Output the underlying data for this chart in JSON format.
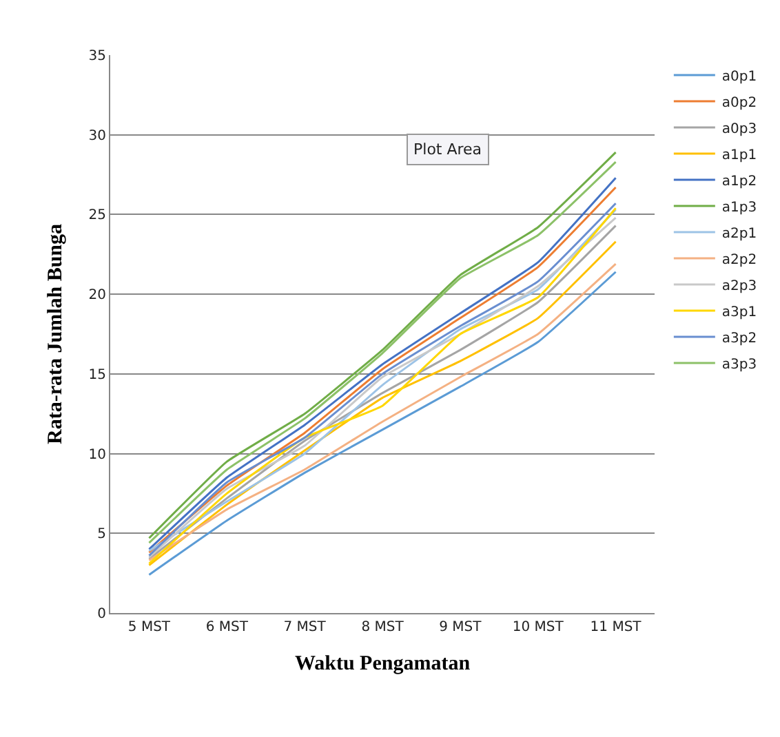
{
  "chart_data": {
    "type": "line",
    "xlabel": "Waktu Pengamatan",
    "ylabel": "Rata-rata Jumlah Bunga",
    "categories": [
      "5 MST",
      "6 MST",
      "7 MST",
      "8 MST",
      "9 MST",
      "10 MST",
      "11 MST"
    ],
    "series": [
      {
        "name": "a0p1",
        "color": "#5b9bd5",
        "values": [
          2.4,
          5.8,
          8.8,
          11.5,
          14.2,
          17.0,
          21.4
        ]
      },
      {
        "name": "a0p2",
        "color": "#ed7d31",
        "values": [
          3.8,
          8.0,
          11.3,
          15.3,
          18.5,
          21.7,
          26.7
        ]
      },
      {
        "name": "a0p3",
        "color": "#a5a5a5",
        "values": [
          3.4,
          7.2,
          10.8,
          13.8,
          16.5,
          19.5,
          24.3
        ]
      },
      {
        "name": "a1p1",
        "color": "#ffc000",
        "values": [
          3.0,
          6.8,
          10.2,
          13.5,
          15.8,
          18.5,
          23.3
        ]
      },
      {
        "name": "a1p2",
        "color": "#4472c4",
        "values": [
          4.0,
          8.5,
          11.8,
          15.6,
          18.8,
          22.0,
          27.3
        ]
      },
      {
        "name": "a1p3",
        "color": "#70ad47",
        "values": [
          4.7,
          9.5,
          12.5,
          16.5,
          21.2,
          24.2,
          28.9
        ]
      },
      {
        "name": "a2p1",
        "color": "#9dc3e6",
        "values": [
          3.9,
          7.0,
          10.0,
          14.3,
          17.8,
          20.3,
          25.3
        ]
      },
      {
        "name": "a2p2",
        "color": "#f4b183",
        "values": [
          3.3,
          6.5,
          9.0,
          12.0,
          14.8,
          17.5,
          21.9
        ]
      },
      {
        "name": "a2p3",
        "color": "#c9c9c9",
        "values": [
          3.5,
          7.8,
          10.5,
          14.8,
          17.5,
          20.5,
          24.8
        ]
      },
      {
        "name": "a3p1",
        "color": "#ffd700",
        "values": [
          3.1,
          7.5,
          11.0,
          13.0,
          17.5,
          19.8,
          25.4
        ]
      },
      {
        "name": "a3p2",
        "color": "#698ed0",
        "values": [
          3.6,
          8.2,
          11.0,
          15.0,
          18.0,
          20.8,
          25.7
        ]
      },
      {
        "name": "a3p3",
        "color": "#8cc168",
        "values": [
          4.4,
          9.0,
          12.2,
          16.3,
          21.0,
          23.7,
          28.3
        ]
      }
    ],
    "ylim": [
      0,
      35
    ],
    "yticks": [
      0,
      5,
      10,
      15,
      20,
      25,
      30,
      35
    ],
    "grid": "y",
    "legend": "right",
    "marker": "none",
    "line_style": "solid",
    "annotations": [
      "Plot Area"
    ]
  }
}
